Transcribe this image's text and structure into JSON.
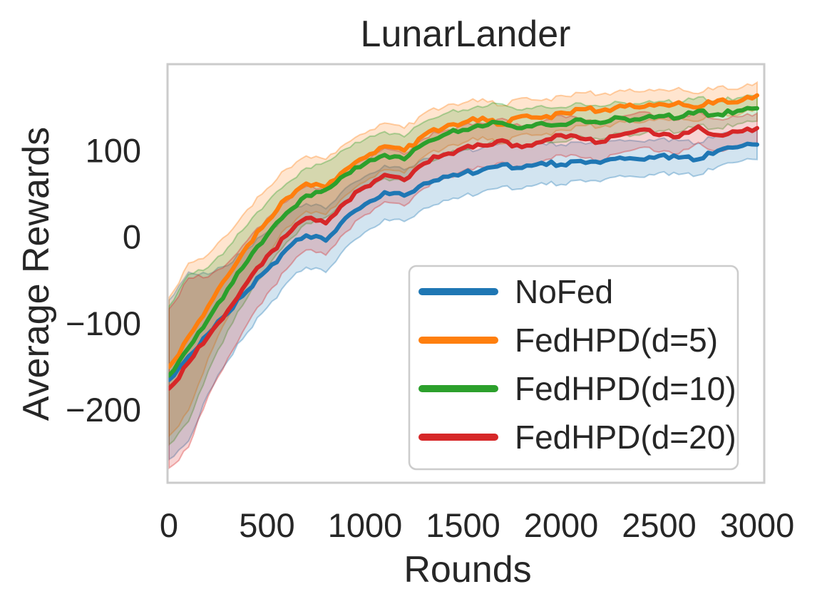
{
  "figure": {
    "title": "LunarLander",
    "xlabel": "Rounds",
    "ylabel": "Average Rewards"
  },
  "style": {
    "background": "#ffffff",
    "axis_border_color": "#cbcbcb",
    "text_color": "#262626",
    "legend_border_color": "#cccccc",
    "legend_background": "rgba(255,255,255,0.85)"
  },
  "chart_data": {
    "type": "line",
    "title": "LunarLander",
    "xlabel": "Rounds",
    "ylabel": "Average Rewards",
    "xlim": [
      0,
      3000
    ],
    "ylim": [
      -284,
      200
    ],
    "grid": false,
    "legend_position": "inside lower-right",
    "x_ticks": [
      {
        "value": 0,
        "label": "0"
      },
      {
        "value": 500,
        "label": "500"
      },
      {
        "value": 1000,
        "label": "1000"
      },
      {
        "value": 1500,
        "label": "1500"
      },
      {
        "value": 2000,
        "label": "2000"
      },
      {
        "value": 2500,
        "label": "2500"
      },
      {
        "value": 3000,
        "label": "3000"
      }
    ],
    "y_ticks": [
      {
        "value": 100,
        "label": "100"
      },
      {
        "value": 0,
        "label": "0"
      },
      {
        "value": -100,
        "label": "−100"
      },
      {
        "value": -200,
        "label": "−200"
      }
    ],
    "x": [
      0,
      100,
      200,
      300,
      400,
      500,
      600,
      700,
      800,
      900,
      1000,
      1100,
      1200,
      1300,
      1400,
      1500,
      1600,
      1700,
      1800,
      1900,
      2000,
      2100,
      2200,
      2300,
      2400,
      2500,
      2600,
      2700,
      2800,
      2900,
      3000
    ],
    "band_halfwidth": [
      80,
      85,
      60,
      48,
      42,
      38,
      34,
      32,
      32,
      30,
      28,
      27,
      26,
      25,
      24,
      23,
      22,
      22,
      21,
      20,
      20,
      19,
      19,
      18,
      18,
      17,
      17,
      16,
      16,
      15,
      15
    ],
    "series": [
      {
        "name": "NoFed",
        "color": "#1f77b4",
        "band_scale": 1.15,
        "values": [
          -165,
          -138,
          -112,
          -88,
          -62,
          -38,
          -14,
          2,
          -4,
          22,
          38,
          52,
          48,
          62,
          70,
          74,
          78,
          84,
          80,
          86,
          84,
          88,
          86,
          92,
          90,
          94,
          92,
          90,
          100,
          104,
          107
        ]
      },
      {
        "name": "FedHPD(d=5)",
        "color": "#ff7f0e",
        "band_scale": 1.0,
        "values": [
          -150,
          -115,
          -80,
          -45,
          -10,
          18,
          45,
          62,
          58,
          78,
          92,
          105,
          100,
          118,
          126,
          132,
          138,
          130,
          140,
          138,
          144,
          148,
          146,
          152,
          150,
          154,
          156,
          150,
          158,
          156,
          164
        ]
      },
      {
        "name": "FedHPD(d=10)",
        "color": "#2ca02c",
        "band_scale": 1.0,
        "values": [
          -160,
          -128,
          -95,
          -60,
          -28,
          2,
          28,
          48,
          55,
          72,
          85,
          95,
          90,
          108,
          118,
          124,
          128,
          132,
          126,
          132,
          130,
          136,
          132,
          138,
          136,
          140,
          138,
          146,
          142,
          146,
          149
        ]
      },
      {
        "name": "FedHPD(d=20)",
        "color": "#d62728",
        "band_scale": 1.15,
        "values": [
          -175,
          -145,
          -115,
          -85,
          -52,
          -22,
          2,
          22,
          16,
          40,
          58,
          72,
          66,
          85,
          95,
          103,
          106,
          112,
          104,
          110,
          118,
          114,
          110,
          118,
          124,
          118,
          116,
          128,
          118,
          122,
          126
        ]
      }
    ]
  }
}
